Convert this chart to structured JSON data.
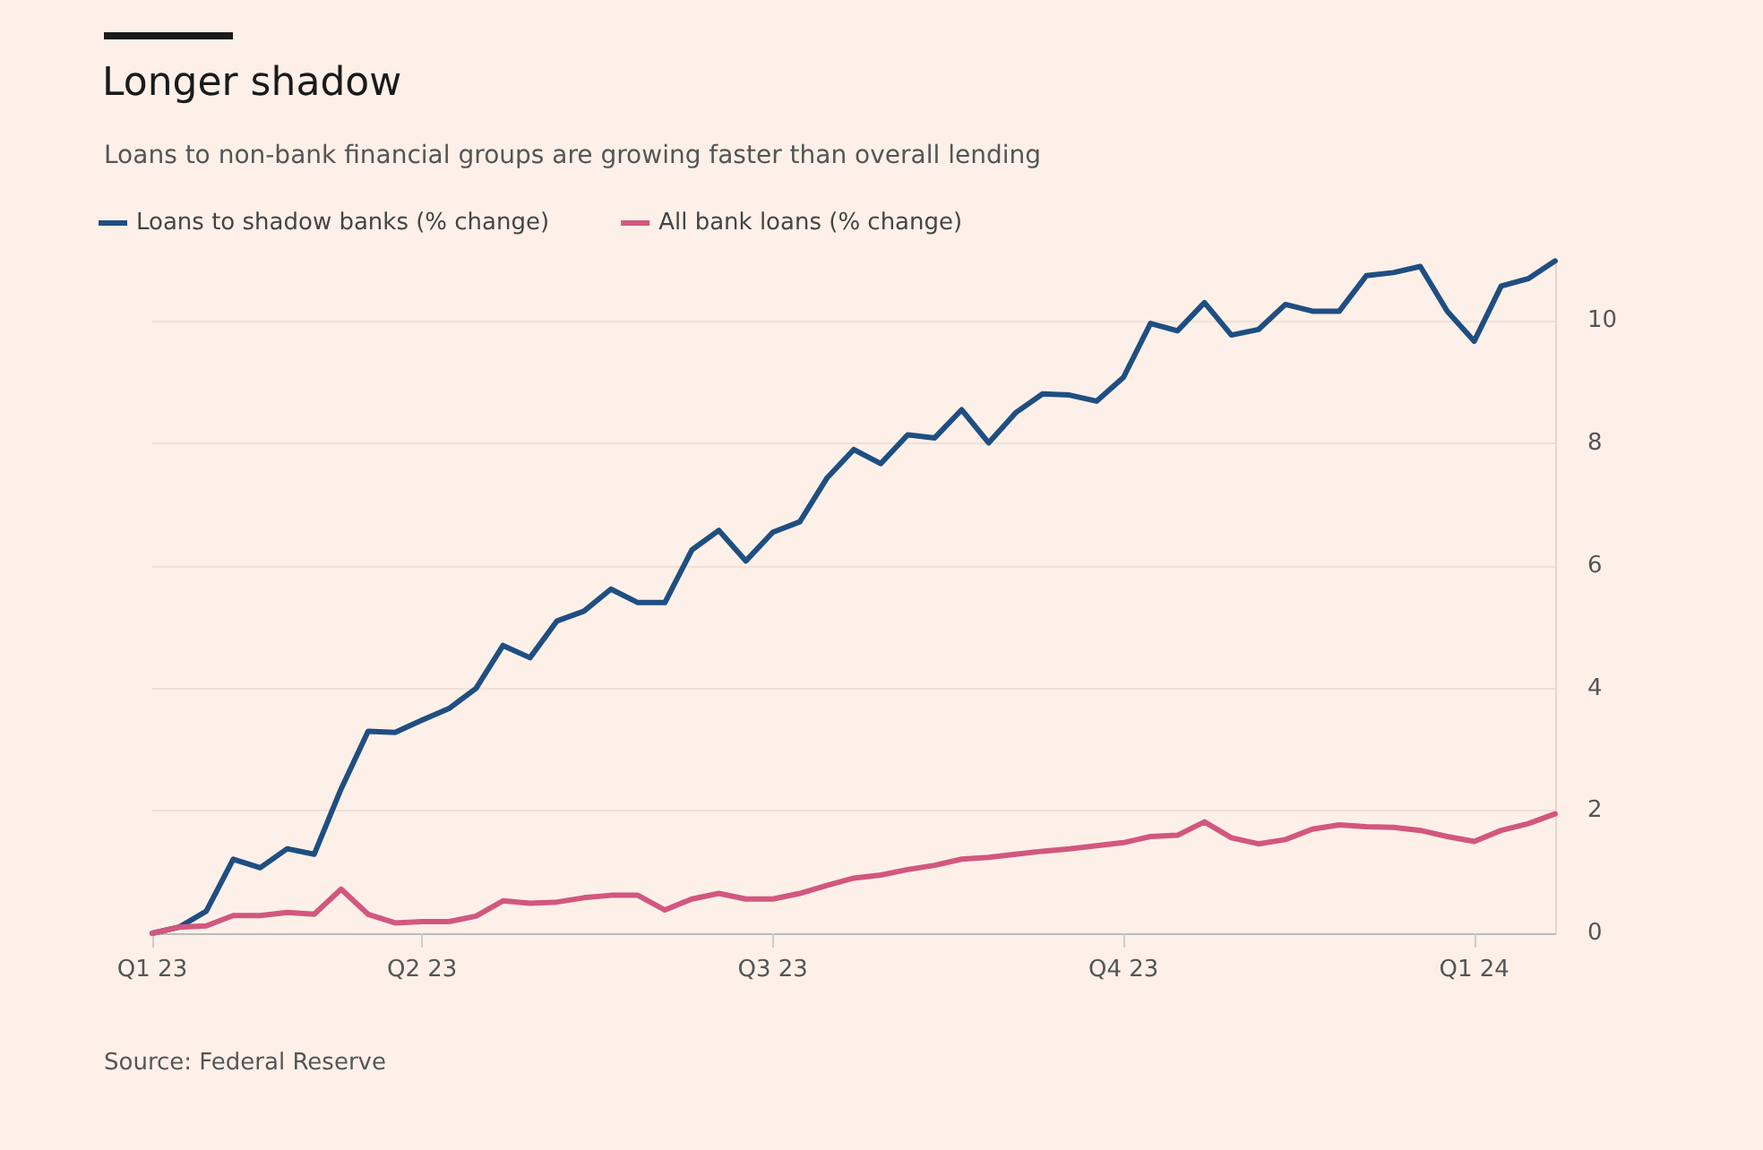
{
  "chart_data": {
    "type": "line",
    "title": "Longer shadow",
    "subtitle": "Loans to non-bank financial groups are growing faster than overall lending",
    "categories": [
      "Q1 23",
      null,
      null,
      null,
      null,
      null,
      null,
      null,
      null,
      null,
      "Q2 23",
      null,
      null,
      null,
      null,
      null,
      null,
      null,
      null,
      null,
      null,
      null,
      null,
      "Q3 23",
      null,
      null,
      null,
      null,
      null,
      null,
      null,
      null,
      null,
      null,
      null,
      null,
      "Q4 23",
      null,
      null,
      null,
      null,
      null,
      null,
      null,
      null,
      null,
      null,
      null,
      null,
      "Q1 24",
      null,
      null,
      null
    ],
    "series": [
      {
        "name": "Loans to shadow banks (% change)",
        "color": "#1f4e82",
        "values": [
          0,
          0.1,
          0.36,
          1.21,
          1.07,
          1.38,
          1.29,
          2.36,
          3.3,
          3.28,
          3.48,
          3.67,
          4.0,
          4.7,
          4.5,
          5.1,
          5.26,
          5.62,
          5.4,
          5.4,
          6.26,
          6.58,
          6.08,
          6.55,
          6.72,
          7.43,
          7.9,
          7.67,
          8.14,
          8.09,
          8.55,
          8.01,
          8.5,
          8.81,
          8.79,
          8.69,
          9.08,
          9.96,
          9.84,
          10.3,
          9.77,
          9.86,
          10.27,
          10.16,
          10.16,
          10.74,
          10.79,
          10.89,
          10.16,
          9.67,
          10.57,
          10.69,
          10.98
        ]
      },
      {
        "name": "All bank loans (% change)",
        "color": "#d2577f",
        "values": [
          0,
          0.1,
          0.12,
          0.29,
          0.29,
          0.34,
          0.31,
          0.72,
          0.31,
          0.17,
          0.19,
          0.19,
          0.28,
          0.53,
          0.49,
          0.51,
          0.58,
          0.62,
          0.62,
          0.38,
          0.56,
          0.65,
          0.56,
          0.56,
          0.65,
          0.78,
          0.9,
          0.95,
          1.04,
          1.11,
          1.21,
          1.24,
          1.29,
          1.34,
          1.38,
          1.43,
          1.48,
          1.58,
          1.6,
          1.82,
          1.56,
          1.46,
          1.53,
          1.7,
          1.77,
          1.74,
          1.73,
          1.68,
          1.58,
          1.5,
          1.68,
          1.79,
          1.95
        ]
      }
    ],
    "ylim": [
      0,
      11
    ],
    "yticks": [
      0,
      2,
      4,
      6,
      8,
      10
    ],
    "grid": "y",
    "legend": "top left",
    "marker": "none",
    "line_style": "solid",
    "annotations": [
      "Source: Federal Reserve"
    ]
  }
}
